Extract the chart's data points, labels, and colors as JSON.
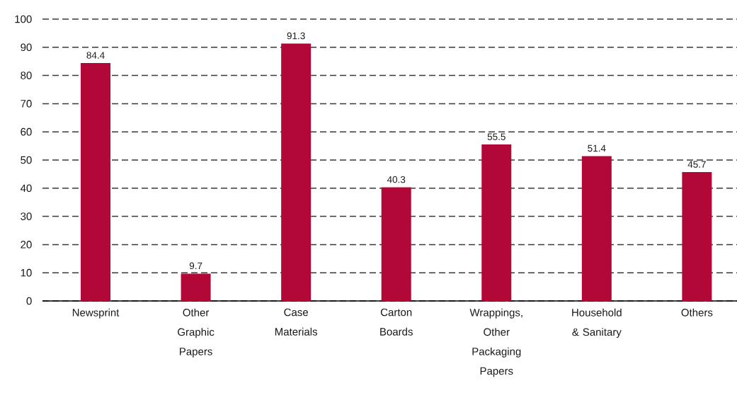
{
  "chart_data": {
    "type": "bar",
    "categories": [
      "Newsprint",
      "Other Graphic Papers",
      "Case Materials",
      "Carton Boards",
      "Wrappings, Other Packaging Papers",
      "Household & Sanitary",
      "Others"
    ],
    "values": [
      84.4,
      9.7,
      91.3,
      40.3,
      55.5,
      51.4,
      45.7
    ],
    "color": "#b10838",
    "ylim": [
      0,
      100
    ],
    "yticks": [
      0,
      10,
      20,
      30,
      40,
      50,
      60,
      70,
      80,
      90,
      100
    ],
    "grid": "y",
    "data_labels": true
  }
}
